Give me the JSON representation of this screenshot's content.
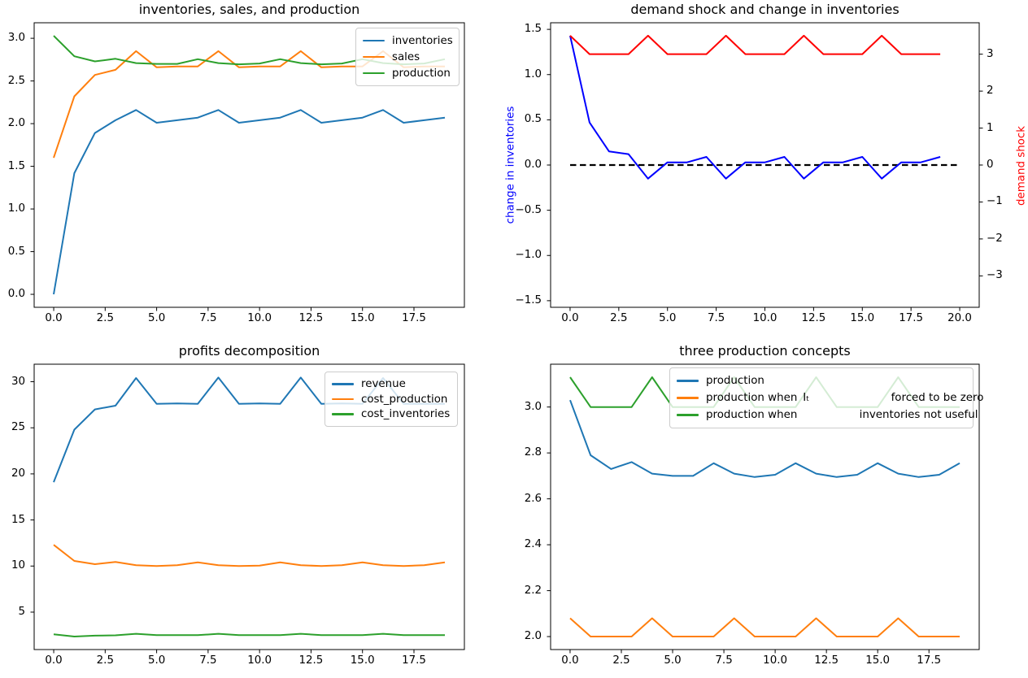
{
  "figure": {
    "background": "#ffffff"
  },
  "colors": {
    "c0": "#1f77b4",
    "c1": "#ff7f0e",
    "c2": "#2ca02c",
    "blue": "#0000ff",
    "red": "#ff0000",
    "black": "#000000"
  },
  "chart_data": [
    {
      "id": "inventories-sales-production",
      "type": "line",
      "title": "inventories, sales, and production",
      "xlabel": "",
      "ylabel": "",
      "grid": false,
      "x": [
        0,
        1,
        2,
        3,
        4,
        5,
        6,
        7,
        8,
        9,
        10,
        11,
        12,
        13,
        14,
        15,
        16,
        17,
        18,
        19
      ],
      "xlim": [
        -0.95,
        19.95
      ],
      "ylim": [
        -0.152,
        3.182
      ],
      "xticks": {
        "values": [
          0,
          2.5,
          5,
          7.5,
          10,
          12.5,
          15,
          17.5
        ],
        "labels": [
          "0.0",
          "2.5",
          "5.0",
          "7.5",
          "10.0",
          "12.5",
          "15.0",
          "17.5"
        ]
      },
      "yticks": {
        "values": [
          0,
          0.5,
          1,
          1.5,
          2,
          2.5,
          3
        ],
        "labels": [
          "0.0",
          "0.5",
          "1.0",
          "1.5",
          "2.0",
          "2.5",
          "3.0"
        ]
      },
      "series": [
        {
          "name": "inventories",
          "color_key": "c0",
          "values": [
            0.0,
            1.42,
            1.89,
            2.04,
            2.16,
            2.01,
            2.04,
            2.07,
            2.16,
            2.01,
            2.04,
            2.07,
            2.16,
            2.01,
            2.04,
            2.07,
            2.16,
            2.01,
            2.04,
            2.07
          ]
        },
        {
          "name": "sales",
          "color_key": "c1",
          "values": [
            1.6,
            2.32,
            2.57,
            2.63,
            2.85,
            2.66,
            2.67,
            2.67,
            2.85,
            2.66,
            2.67,
            2.67,
            2.85,
            2.66,
            2.67,
            2.67,
            2.85,
            2.66,
            2.67,
            2.67
          ]
        },
        {
          "name": "production",
          "color_key": "c2",
          "values": [
            3.03,
            2.79,
            2.73,
            2.76,
            2.71,
            2.7,
            2.7,
            2.755,
            2.71,
            2.695,
            2.705,
            2.755,
            2.71,
            2.695,
            2.705,
            2.755,
            2.71,
            2.695,
            2.705,
            2.755
          ]
        }
      ],
      "legend": {
        "position": "upper right",
        "entries": [
          {
            "label": "inventories",
            "color_key": "c0"
          },
          {
            "label": "sales",
            "color_key": "c1"
          },
          {
            "label": "production",
            "color_key": "c2"
          }
        ]
      }
    },
    {
      "id": "demand-shock-change-inventories",
      "type": "line",
      "title": "demand shock and change in inventories",
      "ylabel_left": "change in inventories",
      "ylabel_left_color_key": "blue",
      "ylabel_right": "demand shock",
      "ylabel_right_color_key": "red",
      "grid": false,
      "x": [
        0,
        1,
        2,
        3,
        4,
        5,
        6,
        7,
        8,
        9,
        10,
        11,
        12,
        13,
        14,
        15,
        16,
        17,
        18,
        19
      ],
      "xlim": [
        -1.0,
        21.0
      ],
      "ylim": [
        -1.573,
        1.573
      ],
      "ylim_right": [
        -3.85,
        3.85
      ],
      "xticks": {
        "values": [
          0,
          2.5,
          5,
          7.5,
          10,
          12.5,
          15,
          17.5,
          20
        ],
        "labels": [
          "0.0",
          "2.5",
          "5.0",
          "7.5",
          "10.0",
          "12.5",
          "15.0",
          "17.5",
          "20.0"
        ]
      },
      "yticks": {
        "values": [
          -1.5,
          -1,
          -0.5,
          0,
          0.5,
          1,
          1.5
        ],
        "labels": [
          "−1.5",
          "−1.0",
          "−0.5",
          "0.0",
          "0.5",
          "1.0",
          "1.5"
        ]
      },
      "yticks_right": {
        "values": [
          -3,
          -2,
          -1,
          0,
          1,
          2,
          3
        ],
        "labels": [
          "−3",
          "−2",
          "−1",
          "0",
          "1",
          "2",
          "3"
        ]
      },
      "series": [
        {
          "name": "zero-line",
          "color_key": "black",
          "style": "dashed",
          "width": 2.3,
          "axis": "left",
          "x": [
            0,
            20
          ],
          "values": [
            0,
            0
          ]
        },
        {
          "name": "change-in-inventories",
          "color_key": "blue",
          "axis": "left",
          "values": [
            1.43,
            0.47,
            0.15,
            0.12,
            -0.15,
            0.03,
            0.03,
            0.09,
            -0.15,
            0.03,
            0.03,
            0.09,
            -0.15,
            0.03,
            0.03,
            0.09,
            -0.15,
            0.03,
            0.03,
            0.09
          ]
        },
        {
          "name": "demand-shock",
          "color_key": "red",
          "axis": "right",
          "values": [
            3.5,
            3,
            3,
            3,
            3.5,
            3,
            3,
            3,
            3.5,
            3,
            3,
            3,
            3.5,
            3,
            3,
            3,
            3.5,
            3,
            3,
            3
          ]
        }
      ]
    },
    {
      "id": "profits-decomposition",
      "type": "line",
      "title": "profits decomposition",
      "xlabel": "",
      "ylabel": "",
      "grid": false,
      "x": [
        0,
        1,
        2,
        3,
        4,
        5,
        6,
        7,
        8,
        9,
        10,
        11,
        12,
        13,
        14,
        15,
        16,
        17,
        18,
        19
      ],
      "xlim": [
        -0.95,
        19.95
      ],
      "ylim": [
        0.94,
        31.9
      ],
      "xticks": {
        "values": [
          0,
          2.5,
          5,
          7.5,
          10,
          12.5,
          15,
          17.5
        ],
        "labels": [
          "0.0",
          "2.5",
          "5.0",
          "7.5",
          "10.0",
          "12.5",
          "15.0",
          "17.5"
        ]
      },
      "yticks": {
        "values": [
          5,
          10,
          15,
          20,
          25,
          30
        ],
        "labels": [
          "5",
          "10",
          "15",
          "20",
          "25",
          "30"
        ]
      },
      "series": [
        {
          "name": "revenue",
          "color_key": "c0",
          "values": [
            19.1,
            24.8,
            27.0,
            27.4,
            30.4,
            27.6,
            27.65,
            27.6,
            30.45,
            27.6,
            27.65,
            27.6,
            30.45,
            27.6,
            27.65,
            27.6,
            30.4,
            27.6,
            27.6,
            27.6
          ]
        },
        {
          "name": "cost_production",
          "color_key": "c1",
          "values": [
            12.3,
            10.55,
            10.2,
            10.45,
            10.1,
            10.0,
            10.1,
            10.4,
            10.1,
            10.0,
            10.05,
            10.4,
            10.1,
            10.0,
            10.1,
            10.4,
            10.1,
            10.0,
            10.1,
            10.4
          ]
        },
        {
          "name": "cost_inventories",
          "color_key": "c2",
          "values": [
            2.6,
            2.35,
            2.45,
            2.48,
            2.65,
            2.5,
            2.5,
            2.5,
            2.65,
            2.5,
            2.5,
            2.5,
            2.65,
            2.5,
            2.5,
            2.5,
            2.65,
            2.5,
            2.5,
            2.5
          ]
        }
      ],
      "legend": {
        "position": "upper right",
        "entries": [
          {
            "label": "revenue",
            "color_key": "c0"
          },
          {
            "label": "cost_production",
            "color_key": "c1"
          },
          {
            "label": "cost_inventories",
            "color_key": "c2"
          }
        ]
      }
    },
    {
      "id": "three-production-concepts",
      "type": "line",
      "title": "three production concepts",
      "xlabel": "",
      "ylabel": "",
      "grid": false,
      "x": [
        0,
        1,
        2,
        3,
        4,
        5,
        6,
        7,
        8,
        9,
        10,
        11,
        12,
        13,
        14,
        15,
        16,
        17,
        18,
        19
      ],
      "xlim": [
        -0.95,
        19.95
      ],
      "ylim": [
        1.9435,
        3.1865
      ],
      "xticks": {
        "values": [
          0,
          2.5,
          5,
          7.5,
          10,
          12.5,
          15,
          17.5
        ],
        "labels": [
          "0.0",
          "2.5",
          "5.0",
          "7.5",
          "10.0",
          "12.5",
          "15.0",
          "17.5"
        ]
      },
      "yticks": {
        "values": [
          2.0,
          2.2,
          2.4,
          2.6,
          2.8,
          3.0
        ],
        "labels": [
          "2.0",
          "2.2",
          "2.4",
          "2.6",
          "2.8",
          "3.0"
        ]
      },
      "series": [
        {
          "name": "production",
          "color_key": "c0",
          "values": [
            3.03,
            2.79,
            2.73,
            2.76,
            2.71,
            2.7,
            2.7,
            2.755,
            2.71,
            2.695,
            2.705,
            2.755,
            2.71,
            2.695,
            2.705,
            2.755,
            2.71,
            2.695,
            2.705,
            2.755
          ]
        },
        {
          "name": "production-when-It-forced-to-be-zero",
          "color_key": "c1",
          "values": [
            2.08,
            2.0,
            2.0,
            2.0,
            2.08,
            2.0,
            2.0,
            2.0,
            2.08,
            2.0,
            2.0,
            2.0,
            2.08,
            2.0,
            2.0,
            2.0,
            2.08,
            2.0,
            2.0,
            2.0
          ]
        },
        {
          "name": "production-when-inventories-not-useful",
          "color_key": "c2",
          "values": [
            3.13,
            3.0,
            3.0,
            3.0,
            3.13,
            3.0,
            3.0,
            3.0,
            3.13,
            3.0,
            3.0,
            3.0,
            3.13,
            3.0,
            3.0,
            3.0,
            3.13,
            3.0,
            3.0,
            3.0
          ]
        }
      ],
      "legend": {
        "position": "upper right",
        "entries": [
          {
            "label": "production",
            "color_key": "c0"
          },
          {
            "label": "production when  Iₜ        forced to be zero",
            "color_key": "c1"
          },
          {
            "label": "production when       inventories not useful",
            "color_key": "c2"
          }
        ]
      }
    }
  ]
}
